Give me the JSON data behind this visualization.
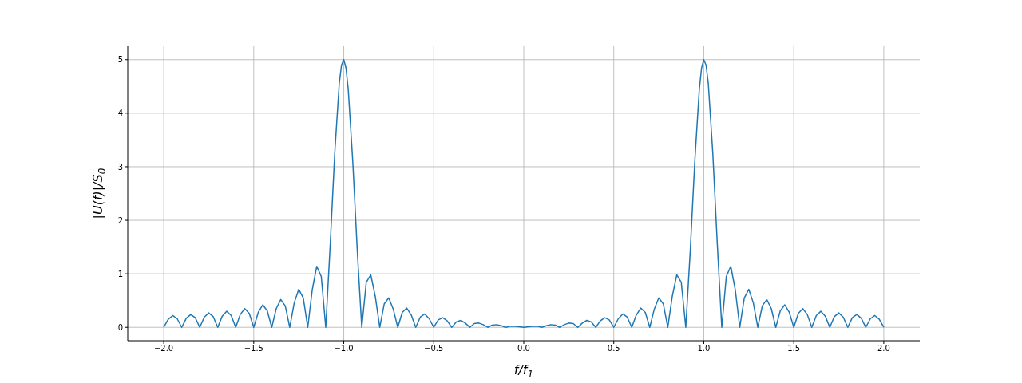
{
  "chart_data": {
    "type": "line",
    "xlabel": "f/f$_{1}$",
    "ylabel": "|U(f)|/S$_{0}$",
    "x": [
      -2,
      -1.975,
      -1.95,
      -1.925,
      -1.9,
      -1.875,
      -1.85,
      -1.825,
      -1.8,
      -1.775,
      -1.75,
      -1.725,
      -1.7,
      -1.675,
      -1.65,
      -1.625,
      -1.6,
      -1.575,
      -1.55,
      -1.525,
      -1.5,
      -1.475,
      -1.45,
      -1.425,
      -1.4,
      -1.375,
      -1.35,
      -1.325,
      -1.3,
      -1.275,
      -1.25,
      -1.225,
      -1.2,
      -1.175,
      -1.15,
      -1.125,
      -1.1,
      -1.075,
      -1.05,
      -1.025,
      -1.0125,
      -1,
      -0.9875,
      -0.975,
      -0.95,
      -0.925,
      -0.9,
      -0.875,
      -0.85,
      -0.825,
      -0.8,
      -0.775,
      -0.75,
      -0.725,
      -0.7,
      -0.675,
      -0.65,
      -0.625,
      -0.6,
      -0.575,
      -0.55,
      -0.525,
      -0.5,
      -0.475,
      -0.45,
      -0.425,
      -0.4,
      -0.375,
      -0.35,
      -0.325,
      -0.3,
      -0.275,
      -0.25,
      -0.225,
      -0.2,
      -0.175,
      -0.15,
      -0.125,
      -0.1,
      -0.075,
      -0.05,
      -0.025,
      0,
      0.025,
      0.05,
      0.075,
      0.1,
      0.125,
      0.15,
      0.175,
      0.2,
      0.225,
      0.25,
      0.275,
      0.3,
      0.325,
      0.35,
      0.375,
      0.4,
      0.425,
      0.45,
      0.475,
      0.5,
      0.525,
      0.55,
      0.575,
      0.6,
      0.625,
      0.65,
      0.675,
      0.7,
      0.725,
      0.75,
      0.775,
      0.8,
      0.825,
      0.85,
      0.875,
      0.9,
      0.925,
      0.95,
      0.975,
      0.9875,
      1,
      1.0125,
      1.025,
      1.05,
      1.075,
      1.1,
      1.125,
      1.15,
      1.175,
      1.2,
      1.225,
      1.25,
      1.275,
      1.3,
      1.325,
      1.35,
      1.375,
      1.4,
      1.425,
      1.45,
      1.475,
      1.5,
      1.525,
      1.55,
      1.575,
      1.6,
      1.625,
      1.65,
      1.675,
      1.7,
      1.725,
      1.75,
      1.775,
      1.8,
      1.825,
      1.85,
      1.875,
      1.9,
      1.925,
      1.95,
      1.975,
      2
    ],
    "series": [
      {
        "color": "#1f77b4",
        "values": [
          0,
          0.15,
          0.22,
          0.16,
          0,
          0.17,
          0.24,
          0.18,
          0,
          0.19,
          0.27,
          0.2,
          0,
          0.21,
          0.3,
          0.22,
          0,
          0.24,
          0.35,
          0.26,
          0,
          0.28,
          0.42,
          0.31,
          0,
          0.35,
          0.52,
          0.4,
          0,
          0.46,
          0.71,
          0.55,
          0,
          0.7,
          1.14,
          0.95,
          0,
          1.56,
          3.26,
          4.56,
          4.9,
          5,
          4.84,
          4.44,
          3.1,
          1.44,
          0,
          0.84,
          0.98,
          0.58,
          0,
          0.44,
          0.55,
          0.34,
          0,
          0.28,
          0.36,
          0.23,
          0,
          0.19,
          0.25,
          0.16,
          0,
          0.14,
          0.18,
          0.12,
          0,
          0.1,
          0.13,
          0.08,
          0,
          0.07,
          0.08,
          0.05,
          0,
          0.04,
          0.05,
          0.03,
          0,
          0.02,
          0.02,
          0.01,
          0,
          0.01,
          0.02,
          0.02,
          0,
          0.03,
          0.05,
          0.04,
          0,
          0.05,
          0.08,
          0.07,
          0,
          0.08,
          0.13,
          0.1,
          0,
          0.12,
          0.18,
          0.14,
          0,
          0.16,
          0.25,
          0.19,
          0,
          0.23,
          0.36,
          0.28,
          0,
          0.34,
          0.55,
          0.44,
          0,
          0.58,
          0.98,
          0.84,
          0,
          1.44,
          3.1,
          4.44,
          4.84,
          5,
          4.9,
          4.56,
          3.26,
          1.56,
          0,
          0.95,
          1.14,
          0.7,
          0,
          0.55,
          0.71,
          0.46,
          0,
          0.4,
          0.52,
          0.35,
          0,
          0.31,
          0.42,
          0.28,
          0,
          0.26,
          0.35,
          0.24,
          0,
          0.22,
          0.3,
          0.21,
          0,
          0.2,
          0.27,
          0.19,
          0,
          0.18,
          0.24,
          0.17,
          0,
          0.16,
          0.22,
          0.15,
          0
        ]
      }
    ],
    "xlim": [
      -2.2,
      2.2
    ],
    "xticks": [
      {
        "value": -2,
        "label": "−2.0"
      },
      {
        "value": -1.5,
        "label": "−1.5"
      },
      {
        "value": -1,
        "label": "−1.0"
      },
      {
        "value": -0.5,
        "label": "−0.5"
      },
      {
        "value": 0,
        "label": "0.0"
      },
      {
        "value": 0.5,
        "label": "0.5"
      },
      {
        "value": 1,
        "label": "1.0"
      },
      {
        "value": 1.5,
        "label": "1.5"
      },
      {
        "value": 2,
        "label": "2.0"
      }
    ],
    "ylim": [
      -0.25,
      5.25
    ],
    "yticks": [
      0,
      1,
      2,
      3,
      4,
      5
    ],
    "grid": true,
    "legend": false,
    "marker": "none",
    "line_style": "solid"
  }
}
